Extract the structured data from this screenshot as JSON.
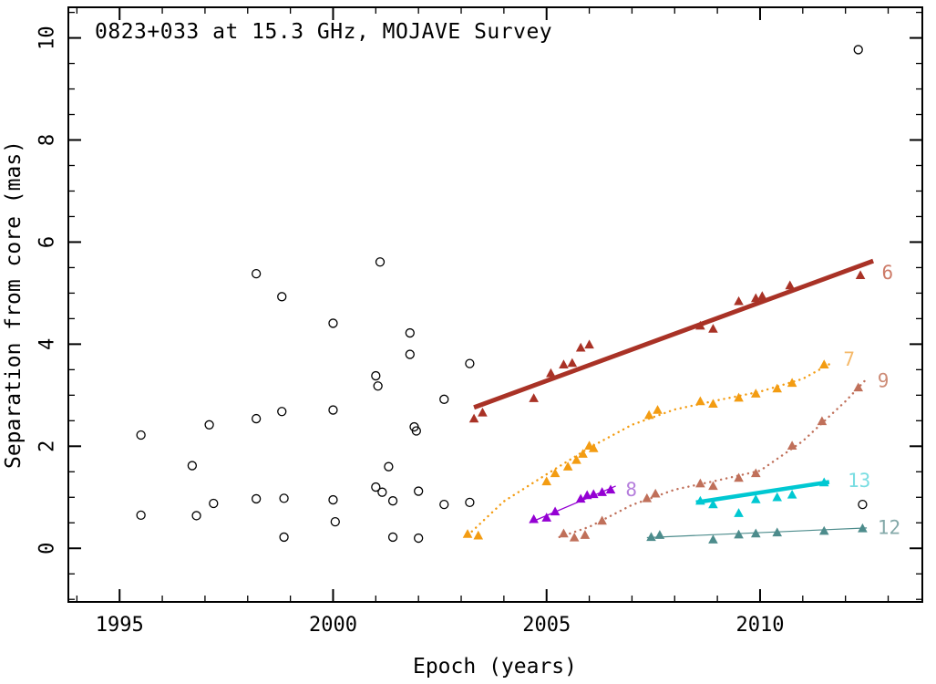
{
  "page": {
    "background": "#ffffff"
  },
  "chart_data": {
    "type": "scatter",
    "title": "0823+033 at 15.3 GHz, MOJAVE Survey",
    "xlabel": "Epoch (years)",
    "ylabel": "Separation from core (mas)",
    "xlim": [
      1993.8,
      2013.8
    ],
    "ylim": [
      -1.05,
      10.6
    ],
    "xticks": [
      1995,
      2000,
      2005,
      2010
    ],
    "yticks": [
      0,
      2,
      4,
      6,
      8,
      10
    ],
    "grid": false,
    "frame_color": "#000000",
    "series": [
      {
        "name": "unassociated-components",
        "marker": "open-circle",
        "color": "#000000",
        "points": [
          [
            1995.5,
            2.22
          ],
          [
            1995.5,
            0.65
          ],
          [
            1996.7,
            1.62
          ],
          [
            1996.8,
            0.64
          ],
          [
            1997.1,
            2.42
          ],
          [
            1997.2,
            0.88
          ],
          [
            1998.2,
            5.38
          ],
          [
            1998.2,
            2.54
          ],
          [
            1998.2,
            0.97
          ],
          [
            1998.8,
            4.93
          ],
          [
            1998.8,
            2.68
          ],
          [
            1998.85,
            0.98
          ],
          [
            1998.85,
            0.22
          ],
          [
            2000.0,
            4.41
          ],
          [
            2000.0,
            2.71
          ],
          [
            2000.0,
            0.95
          ],
          [
            2000.05,
            0.52
          ],
          [
            2001.1,
            5.61
          ],
          [
            2001.0,
            3.38
          ],
          [
            2001.05,
            3.18
          ],
          [
            2001.0,
            1.2
          ],
          [
            2001.15,
            1.1
          ],
          [
            2001.3,
            1.6
          ],
          [
            2001.4,
            0.93
          ],
          [
            2001.4,
            0.22
          ],
          [
            2001.8,
            4.22
          ],
          [
            2001.8,
            3.8
          ],
          [
            2001.9,
            2.38
          ],
          [
            2001.95,
            2.3
          ],
          [
            2002.0,
            1.12
          ],
          [
            2002.0,
            0.2
          ],
          [
            2002.6,
            2.92
          ],
          [
            2002.6,
            0.86
          ],
          [
            2003.2,
            3.62
          ],
          [
            2003.2,
            0.9
          ],
          [
            2012.3,
            9.77
          ],
          [
            2012.4,
            0.86
          ]
        ]
      },
      {
        "name": "component-6",
        "label": "6",
        "marker": "triangle",
        "color": "#a93226",
        "label_color": "#cd7b68",
        "label_pos": [
          2012.85,
          5.42
        ],
        "line": {
          "style": "solid",
          "width": 5,
          "path": [
            [
              2003.3,
              2.76
            ],
            [
              2012.65,
              5.63
            ]
          ]
        },
        "points": [
          [
            2003.3,
            2.54
          ],
          [
            2003.5,
            2.66
          ],
          [
            2004.7,
            2.94
          ],
          [
            2005.1,
            3.43
          ],
          [
            2005.4,
            3.6
          ],
          [
            2005.6,
            3.63
          ],
          [
            2005.8,
            3.93
          ],
          [
            2006.0,
            3.99
          ],
          [
            2008.6,
            4.36
          ],
          [
            2008.9,
            4.3
          ],
          [
            2009.5,
            4.84
          ],
          [
            2009.9,
            4.9
          ],
          [
            2010.05,
            4.94
          ],
          [
            2010.7,
            5.15
          ],
          [
            2012.35,
            5.35
          ]
        ]
      },
      {
        "name": "component-7",
        "label": "7",
        "marker": "triangle",
        "color": "#f39c12",
        "label_color": "#f5b96a",
        "label_pos": [
          2011.95,
          3.72
        ],
        "line": {
          "style": "dotted",
          "width": 2,
          "path": [
            [
              2003.25,
              0.33
            ],
            [
              2004.0,
              0.92
            ],
            [
              2005.0,
              1.45
            ],
            [
              2006.0,
              1.97
            ],
            [
              2007.0,
              2.42
            ],
            [
              2008.0,
              2.72
            ],
            [
              2009.0,
              2.9
            ],
            [
              2010.0,
              3.07
            ],
            [
              2011.0,
              3.32
            ],
            [
              2011.65,
              3.62
            ]
          ]
        },
        "points": [
          [
            2003.15,
            0.28
          ],
          [
            2003.4,
            0.25
          ],
          [
            2005.0,
            1.31
          ],
          [
            2005.2,
            1.47
          ],
          [
            2005.5,
            1.6
          ],
          [
            2005.7,
            1.73
          ],
          [
            2005.85,
            1.85
          ],
          [
            2006.0,
            2.01
          ],
          [
            2006.1,
            1.96
          ],
          [
            2007.4,
            2.61
          ],
          [
            2007.6,
            2.71
          ],
          [
            2008.6,
            2.88
          ],
          [
            2008.9,
            2.83
          ],
          [
            2009.5,
            2.95
          ],
          [
            2009.9,
            3.03
          ],
          [
            2010.4,
            3.13
          ],
          [
            2010.75,
            3.24
          ],
          [
            2011.5,
            3.6
          ]
        ]
      },
      {
        "name": "component-9",
        "label": "9",
        "marker": "triangle",
        "color": "#c0705a",
        "label_color": "#cd8b76",
        "label_pos": [
          2012.75,
          3.3
        ],
        "line": {
          "style": "dotted",
          "width": 2,
          "path": [
            [
              2005.3,
              0.22
            ],
            [
              2006.0,
              0.42
            ],
            [
              2007.0,
              0.85
            ],
            [
              2008.0,
              1.15
            ],
            [
              2009.0,
              1.33
            ],
            [
              2010.0,
              1.52
            ],
            [
              2011.0,
              2.1
            ],
            [
              2012.0,
              2.88
            ],
            [
              2012.45,
              3.28
            ]
          ]
        },
        "points": [
          [
            2005.4,
            0.29
          ],
          [
            2005.65,
            0.21
          ],
          [
            2005.9,
            0.26
          ],
          [
            2006.3,
            0.54
          ],
          [
            2007.35,
            0.98
          ],
          [
            2007.55,
            1.07
          ],
          [
            2008.6,
            1.27
          ],
          [
            2008.9,
            1.22
          ],
          [
            2009.5,
            1.38
          ],
          [
            2009.9,
            1.47
          ],
          [
            2010.75,
            2.01
          ],
          [
            2011.45,
            2.49
          ],
          [
            2012.3,
            3.15
          ]
        ]
      },
      {
        "name": "component-8",
        "label": "8",
        "marker": "triangle",
        "color": "#9400d3",
        "label_color": "#b57edc",
        "label_pos": [
          2006.85,
          1.17
        ],
        "line": {
          "style": "solid",
          "width": 1.3,
          "path": [
            [
              2004.6,
              0.5
            ],
            [
              2006.62,
              1.22
            ]
          ]
        },
        "points": [
          [
            2004.7,
            0.57
          ],
          [
            2005.0,
            0.6
          ],
          [
            2005.2,
            0.72
          ],
          [
            2005.8,
            0.97
          ],
          [
            2005.95,
            1.04
          ],
          [
            2006.1,
            1.06
          ],
          [
            2006.3,
            1.1
          ],
          [
            2006.5,
            1.15
          ]
        ]
      },
      {
        "name": "component-13",
        "label": "13",
        "marker": "triangle",
        "color": "#00c8d2",
        "label_color": "#79dde2",
        "label_pos": [
          2012.05,
          1.34
        ],
        "line": {
          "style": "solid",
          "width": 4.5,
          "path": [
            [
              2008.5,
              0.9
            ],
            [
              2011.62,
              1.3
            ]
          ]
        },
        "points": [
          [
            2008.6,
            0.93
          ],
          [
            2008.9,
            0.86
          ],
          [
            2009.5,
            0.69
          ],
          [
            2009.9,
            0.96
          ],
          [
            2010.4,
            1.0
          ],
          [
            2010.75,
            1.05
          ],
          [
            2011.5,
            1.29
          ]
        ]
      },
      {
        "name": "component-12",
        "label": "12",
        "marker": "triangle",
        "color": "#4d8c8c",
        "label_color": "#84a9a9",
        "label_pos": [
          2012.75,
          0.42
        ],
        "line": {
          "style": "solid",
          "width": 1.2,
          "path": [
            [
              2007.35,
              0.21
            ],
            [
              2012.5,
              0.4
            ]
          ]
        },
        "points": [
          [
            2007.45,
            0.22
          ],
          [
            2007.65,
            0.26
          ],
          [
            2008.9,
            0.17
          ],
          [
            2009.5,
            0.27
          ],
          [
            2009.9,
            0.29
          ],
          [
            2010.4,
            0.31
          ],
          [
            2011.5,
            0.34
          ],
          [
            2012.4,
            0.39
          ]
        ]
      }
    ]
  }
}
